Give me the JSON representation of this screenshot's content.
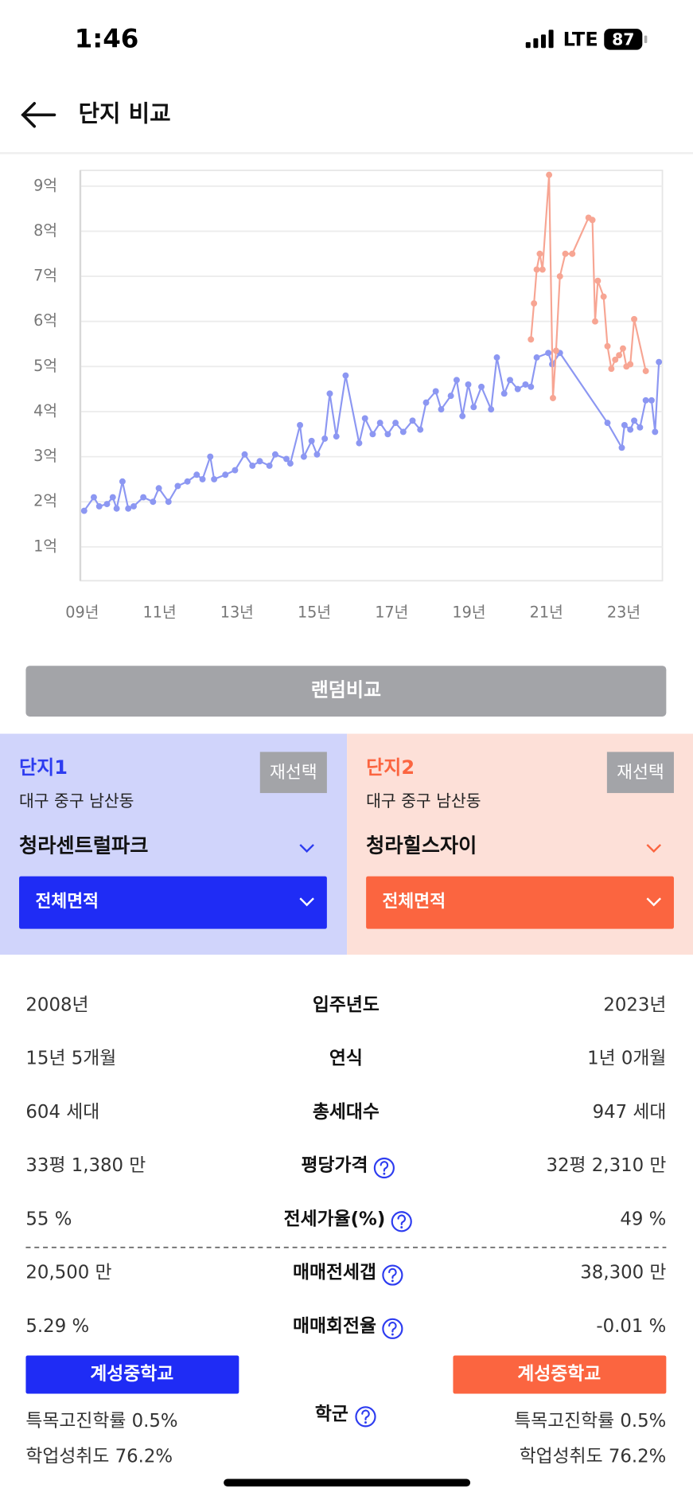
{
  "status_bar": {
    "time": "1:46",
    "network": "LTE",
    "battery": "87"
  },
  "header": {
    "title": "단지 비교"
  },
  "chart_data": {
    "type": "line",
    "xlim": [
      2008.95,
      2024
    ],
    "xticks": [
      {
        "value": 2009,
        "label": "09년"
      },
      {
        "value": 2011,
        "label": "11년"
      },
      {
        "value": 2013,
        "label": "13년"
      },
      {
        "value": 2015,
        "label": "15년"
      },
      {
        "value": 2017,
        "label": "17년"
      },
      {
        "value": 2019,
        "label": "19년"
      },
      {
        "value": 2021,
        "label": "21년"
      },
      {
        "value": 2023,
        "label": "23년"
      }
    ],
    "ylim": [
      0.25,
      9.35
    ],
    "yticks": [
      {
        "value": 1,
        "label": "1억"
      },
      {
        "value": 2,
        "label": "2억"
      },
      {
        "value": 3,
        "label": "3억"
      },
      {
        "value": 4,
        "label": "4억"
      },
      {
        "value": 5,
        "label": "5억"
      },
      {
        "value": 6,
        "label": "6억"
      },
      {
        "value": 7,
        "label": "7억"
      },
      {
        "value": 8,
        "label": "8억"
      },
      {
        "value": 9,
        "label": "9억"
      }
    ],
    "grid": true,
    "series": [
      {
        "color": "#8c97f2",
        "x": [
          2009.05,
          2009.3,
          2009.44,
          2009.64,
          2009.79,
          2009.89,
          2010.04,
          2010.19,
          2010.33,
          2010.58,
          2010.83,
          2010.98,
          2011.23,
          2011.47,
          2011.72,
          2011.96,
          2012.11,
          2012.31,
          2012.41,
          2012.7,
          2012.95,
          2013.2,
          2013.4,
          2013.59,
          2013.84,
          2013.99,
          2014.28,
          2014.38,
          2014.63,
          2014.73,
          2014.93,
          2015.07,
          2015.27,
          2015.4,
          2015.57,
          2015.81,
          2016.16,
          2016.31,
          2016.51,
          2016.7,
          2016.9,
          2017.1,
          2017.3,
          2017.54,
          2017.74,
          2017.89,
          2018.14,
          2018.28,
          2018.53,
          2018.68,
          2018.83,
          2018.98,
          2019.12,
          2019.32,
          2019.57,
          2019.72,
          2019.91,
          2020.06,
          2020.26,
          2020.46,
          2020.6,
          2020.75,
          2021.05,
          2021.15,
          2021.35,
          2022.58,
          2022.95,
          2023.02,
          2023.17,
          2023.27,
          2023.42,
          2023.57,
          2023.72,
          2023.81,
          2023.91
        ],
        "values": [
          1.8,
          2.1,
          1.9,
          1.95,
          2.1,
          1.85,
          2.45,
          1.85,
          1.9,
          2.1,
          2.0,
          2.3,
          2.0,
          2.35,
          2.45,
          2.6,
          2.5,
          3.0,
          2.5,
          2.6,
          2.7,
          3.05,
          2.8,
          2.9,
          2.8,
          3.05,
          2.95,
          2.85,
          3.7,
          3.0,
          3.35,
          3.05,
          3.4,
          4.4,
          3.45,
          4.8,
          3.3,
          3.85,
          3.5,
          3.75,
          3.5,
          3.75,
          3.55,
          3.8,
          3.6,
          4.2,
          4.45,
          4.05,
          4.35,
          4.7,
          3.9,
          4.6,
          4.1,
          4.55,
          4.05,
          5.2,
          4.4,
          4.7,
          4.5,
          4.6,
          4.55,
          5.2,
          5.3,
          5.05,
          5.3,
          3.75,
          3.2,
          3.7,
          3.6,
          3.8,
          3.65,
          4.25,
          4.25,
          3.55,
          5.1
        ]
      },
      {
        "color": "#f7a593",
        "x": [
          2020.6,
          2020.68,
          2020.75,
          2020.83,
          2020.9,
          2021.07,
          2021.17,
          2021.25,
          2021.35,
          2021.49,
          2021.67,
          2022.09,
          2022.19,
          2022.26,
          2022.33,
          2022.48,
          2022.58,
          2022.68,
          2022.78,
          2022.88,
          2022.98,
          2023.07,
          2023.17,
          2023.27,
          2023.57
        ],
        "values": [
          5.6,
          6.4,
          7.15,
          7.5,
          7.15,
          9.25,
          4.3,
          5.35,
          7.0,
          7.5,
          7.5,
          8.3,
          8.25,
          6.0,
          6.9,
          6.55,
          5.45,
          4.95,
          5.15,
          5.25,
          5.4,
          5.0,
          5.05,
          6.05,
          4.9
        ]
      }
    ]
  },
  "random_button": "랜덤비교",
  "complexes": [
    {
      "label": "단지1",
      "reselect": "재선택",
      "location": "대구 중구 남산동",
      "name": "청라센트럴파크",
      "area": "전체면적"
    },
    {
      "label": "단지2",
      "reselect": "재선택",
      "location": "대구 중구 남산동",
      "name": "청라힐스자이",
      "area": "전체면적"
    }
  ],
  "table": {
    "rows": [
      {
        "left": "2008년",
        "label": "입주년도",
        "right": "2023년",
        "help": false
      },
      {
        "left": "15년 5개월",
        "label": "연식",
        "right": "1년 0개월",
        "help": false
      },
      {
        "left": "604 세대",
        "label": "총세대수",
        "right": "947 세대",
        "help": false
      },
      {
        "left": "33평 1,380 만",
        "label": "평당가격",
        "right": "32평 2,310 만",
        "help": true
      },
      {
        "left": "55 %",
        "label": "전세가율(%)",
        "right": "49 %",
        "help": true
      },
      {
        "left": "20,500 만",
        "label": "매매전세갭",
        "right": "38,300 만",
        "help": true
      },
      {
        "left": "5.29 %",
        "label": "매매회전율",
        "right": "-0.01 %",
        "help": true
      }
    ]
  },
  "school": {
    "label": "학군",
    "schools": [
      "계성중학교",
      "계성중학교"
    ],
    "left": [
      "특목고진학률 0.5%",
      "학업성취도 76.2%"
    ],
    "right": [
      "특목고진학률 0.5%",
      "학업성취도 76.2%"
    ]
  }
}
